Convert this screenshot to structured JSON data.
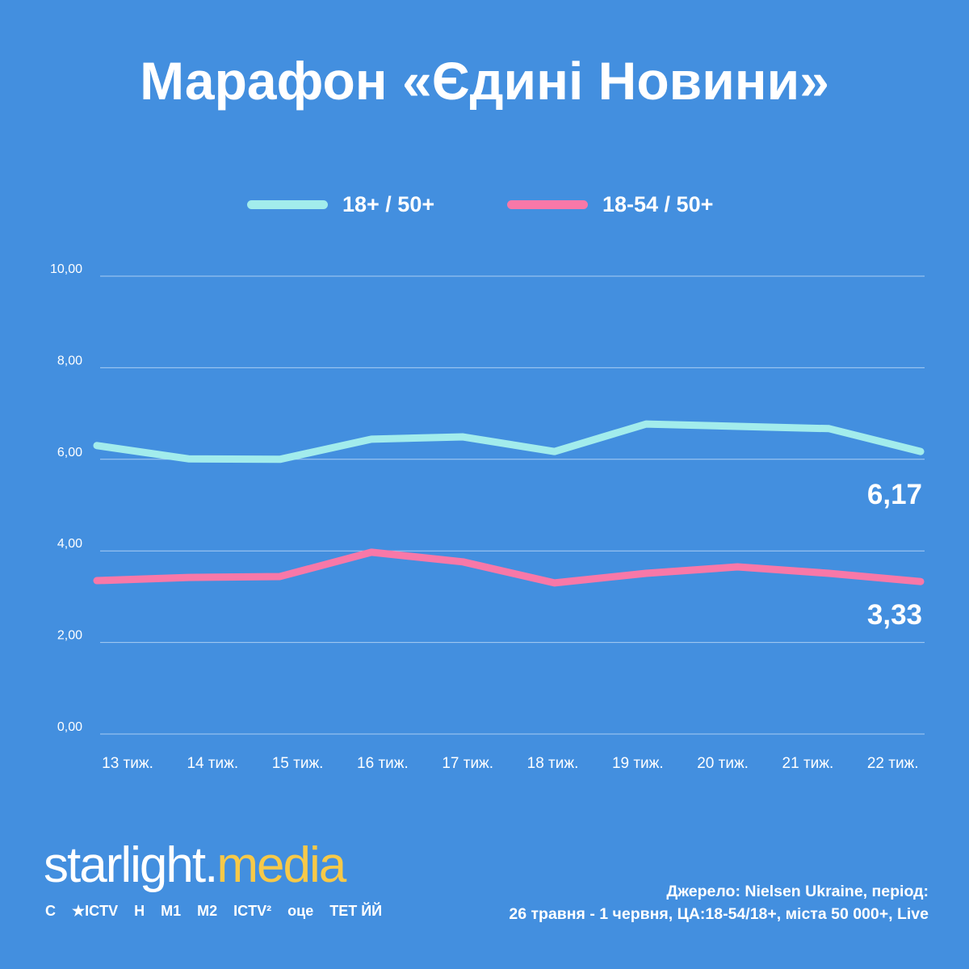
{
  "chart_data": {
    "type": "line",
    "title": "Марафон «Єдині Новини»",
    "categories": [
      "13 тиж.",
      "14 тиж.",
      "15 тиж.",
      "16 тиж.",
      "17 тиж.",
      "18 тиж.",
      "19 тиж.",
      "20 тиж.",
      "21 тиж.",
      "22 тиж."
    ],
    "yticks": [
      "0,00",
      "2,00",
      "4,00",
      "6,00",
      "8,00",
      "10,00"
    ],
    "ylim": [
      0,
      10
    ],
    "grid": true,
    "legend_position": "top-center",
    "series": [
      {
        "name": "18+ / 50+",
        "color": "#a2ecec",
        "values": [
          6.3,
          6.01,
          6.0,
          6.44,
          6.49,
          6.17,
          6.77,
          6.72,
          6.67,
          6.17
        ],
        "end_label": "6,17"
      },
      {
        "name": "18-54 / 50+",
        "color": "#f878a8",
        "values": [
          3.35,
          3.42,
          3.44,
          3.97,
          3.76,
          3.3,
          3.51,
          3.65,
          3.51,
          3.33
        ],
        "end_label": "3,33"
      }
    ]
  },
  "footer": {
    "brand_a": "starlight",
    "brand_b": "media",
    "channels": [
      "С",
      "★ICTV",
      "Н",
      "М1",
      "М2",
      "ICTV²",
      "оце",
      "ТЕТ ЙЙ"
    ],
    "source_line1": "Джерело: Nielsen Ukraine, період:",
    "source_line2": "26 травня - 1 червня, ЦА:18-54/18+, міста 50 000+, Live"
  }
}
